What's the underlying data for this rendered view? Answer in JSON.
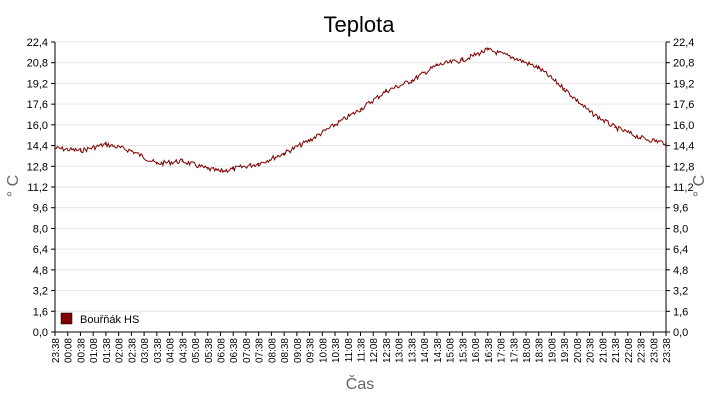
{
  "chart_data": {
    "type": "line",
    "title": "Teplota",
    "xlabel": "Čas",
    "ylabel": "° C",
    "ylim": [
      0,
      22.4
    ],
    "y_ticks": [
      "0,0",
      "1,6",
      "3,2",
      "4,8",
      "6,4",
      "8,0",
      "9,6",
      "11,2",
      "12,8",
      "14,4",
      "16,0",
      "17,6",
      "19,2",
      "20,8",
      "22,4"
    ],
    "x_ticks": [
      "23:38",
      "00:08",
      "00:38",
      "01:08",
      "01:38",
      "02:08",
      "02:38",
      "03:08",
      "03:38",
      "04:08",
      "04:38",
      "05:08",
      "05:38",
      "06:08",
      "06:38",
      "07:08",
      "07:38",
      "08:08",
      "08:38",
      "09:08",
      "09:38",
      "10:08",
      "10:38",
      "11:08",
      "11:38",
      "12:08",
      "12:38",
      "13:08",
      "13:38",
      "14:08",
      "14:38",
      "15:08",
      "15:38",
      "16:08",
      "16:38",
      "17:08",
      "17:38",
      "18:08",
      "18:38",
      "19:08",
      "19:38",
      "20:08",
      "20:38",
      "21:08",
      "21:38",
      "22:08",
      "22:38",
      "23:08",
      "23:38"
    ],
    "grid": true,
    "legend_position": "bottom-left",
    "series": [
      {
        "name": "Bouřňák HS",
        "color": "#800000",
        "x": [
          "23:38",
          "00:38",
          "01:38",
          "02:38",
          "03:38",
          "04:38",
          "05:38",
          "06:08",
          "06:38",
          "07:38",
          "08:38",
          "09:38",
          "10:38",
          "11:38",
          "12:38",
          "13:38",
          "14:38",
          "15:38",
          "16:38",
          "17:38",
          "18:38",
          "19:38",
          "20:38",
          "21:38",
          "22:38",
          "23:38"
        ],
        "values": [
          14.2,
          14.0,
          14.5,
          14.0,
          13.0,
          13.2,
          12.6,
          12.4,
          12.6,
          13.0,
          13.8,
          14.8,
          16.0,
          17.2,
          18.6,
          19.4,
          20.6,
          21.0,
          21.8,
          21.2,
          20.4,
          18.8,
          17.0,
          15.8,
          15.0,
          14.6
        ]
      }
    ]
  }
}
